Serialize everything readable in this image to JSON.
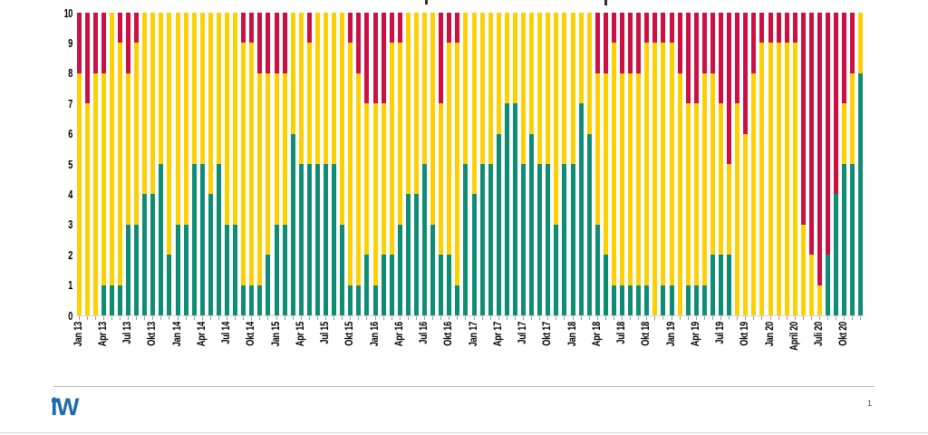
{
  "page": {
    "background": "#ffffff",
    "page_number": "1"
  },
  "branding": {
    "logo_text": "iW",
    "logo_color": "#1e6cac"
  },
  "chart_data": {
    "type": "bar",
    "stacked": true,
    "title": "",
    "xlabel": "",
    "ylabel": "",
    "ylim": [
      0,
      10
    ],
    "grid": false,
    "legend": "none",
    "y_ticks": [
      "10",
      "9",
      "8",
      "7",
      "6",
      "5",
      "4",
      "3",
      "2",
      "1",
      "0"
    ],
    "tick_every": 3,
    "x_tick_labels": [
      "Jan 13",
      "Apr 13",
      "Jul 13",
      "Okt 13",
      "Jan 14",
      "Apr 14",
      "Jul 14",
      "Okt 14",
      "Jan 15",
      "Apr 15",
      "Jul 15",
      "Okt 15",
      "Jan 16",
      "Apr 16",
      "Jul 16",
      "Okt 16",
      "Jan 17",
      "Apr 17",
      "Jul 17",
      "Okt 17",
      "Jan 18",
      "Apr 18",
      "Jul 18",
      "Okt 18",
      "Jan 19",
      "Apr 19",
      "Jul 19",
      "Okt 19",
      "Jan 20",
      "April 20",
      "Juli 20",
      "Okt 20"
    ],
    "categories": [
      "Jan 13",
      "Feb 13",
      "Mär 13",
      "Apr 13",
      "Mai 13",
      "Jun 13",
      "Jul 13",
      "Aug 13",
      "Sep 13",
      "Okt 13",
      "Nov 13",
      "Dez 13",
      "Jan 14",
      "Feb 14",
      "Mär 14",
      "Apr 14",
      "Mai 14",
      "Jun 14",
      "Jul 14",
      "Aug 14",
      "Sep 14",
      "Okt 14",
      "Nov 14",
      "Dez 14",
      "Jan 15",
      "Feb 15",
      "Mär 15",
      "Apr 15",
      "Mai 15",
      "Jun 15",
      "Jul 15",
      "Aug 15",
      "Sep 15",
      "Okt 15",
      "Nov 15",
      "Dez 15",
      "Jan 16",
      "Feb 16",
      "Mär 16",
      "Apr 16",
      "Mai 16",
      "Jun 16",
      "Jul 16",
      "Aug 16",
      "Sep 16",
      "Okt 16",
      "Nov 16",
      "Dez 16",
      "Jan 17",
      "Feb 17",
      "Mär 17",
      "Apr 17",
      "Mai 17",
      "Jun 17",
      "Jul 17",
      "Aug 17",
      "Sep 17",
      "Okt 17",
      "Nov 17",
      "Dez 17",
      "Jan 18",
      "Feb 18",
      "Mär 18",
      "Apr 18",
      "Mai 18",
      "Jun 18",
      "Jul 18",
      "Aug 18",
      "Sep 18",
      "Okt 18",
      "Nov 18",
      "Dez 18",
      "Jan 19",
      "Feb 19",
      "Mär 19",
      "Apr 19",
      "Mai 19",
      "Jun 19",
      "Jul 19",
      "Aug 19",
      "Sep 19",
      "Okt 19",
      "Nov 19",
      "Dez 19",
      "Jan 20",
      "Feb 20",
      "Mär 20",
      "Apr 20",
      "Mai 20",
      "Jun 20",
      "Jul 20",
      "Aug 20",
      "Sep 20",
      "Okt 20",
      "Nov 20",
      "Dez 20"
    ],
    "series_colors": {
      "green": "#0f8c74",
      "yellow": "#fdd006",
      "red": "#cd1043"
    },
    "series": [
      {
        "name": "green",
        "values": [
          0,
          0,
          0,
          1,
          1,
          1,
          3,
          3,
          4,
          4,
          5,
          2,
          3,
          3,
          5,
          5,
          4,
          5,
          3,
          3,
          1,
          1,
          1,
          2,
          3,
          3,
          6,
          5,
          5,
          5,
          5,
          5,
          3,
          1,
          1,
          2,
          1,
          2,
          2,
          3,
          4,
          4,
          5,
          3,
          2,
          2,
          1,
          5,
          4,
          5,
          5,
          6,
          7,
          7,
          5,
          6,
          5,
          5,
          3,
          5,
          5,
          7,
          6,
          3,
          2,
          1,
          1,
          1,
          1,
          1,
          0,
          1,
          1,
          0,
          1,
          1,
          1,
          2,
          2,
          2,
          0,
          0,
          0,
          0,
          0,
          0,
          0,
          0,
          0,
          0,
          0,
          2,
          4,
          5,
          5,
          8
        ]
      },
      {
        "name": "yellow",
        "values": [
          8,
          7,
          8,
          7,
          9,
          8,
          5,
          6,
          6,
          6,
          5,
          8,
          7,
          7,
          5,
          5,
          6,
          5,
          7,
          7,
          8,
          8,
          7,
          6,
          5,
          5,
          4,
          5,
          4,
          5,
          5,
          5,
          7,
          8,
          7,
          5,
          6,
          5,
          7,
          6,
          6,
          6,
          5,
          7,
          5,
          7,
          8,
          5,
          6,
          5,
          5,
          4,
          3,
          3,
          5,
          4,
          5,
          5,
          7,
          5,
          5,
          3,
          4,
          5,
          6,
          8,
          7,
          7,
          7,
          8,
          9,
          8,
          8,
          8,
          6,
          6,
          7,
          6,
          5,
          3,
          7,
          6,
          8,
          9,
          9,
          9,
          9,
          9,
          3,
          2,
          1,
          0,
          0,
          2,
          3,
          2
        ]
      },
      {
        "name": "red",
        "values": [
          2,
          3,
          2,
          2,
          0,
          1,
          2,
          1,
          0,
          0,
          0,
          0,
          0,
          0,
          0,
          0,
          0,
          0,
          0,
          0,
          1,
          1,
          2,
          2,
          2,
          2,
          0,
          0,
          1,
          0,
          0,
          0,
          0,
          1,
          2,
          3,
          3,
          3,
          1,
          1,
          0,
          0,
          0,
          0,
          3,
          1,
          1,
          0,
          0,
          0,
          0,
          0,
          0,
          0,
          0,
          0,
          0,
          0,
          0,
          0,
          0,
          0,
          0,
          2,
          2,
          1,
          2,
          2,
          2,
          1,
          1,
          1,
          1,
          2,
          3,
          3,
          2,
          2,
          3,
          5,
          3,
          4,
          2,
          1,
          1,
          1,
          1,
          1,
          7,
          8,
          9,
          8,
          6,
          3,
          2,
          0
        ]
      }
    ]
  }
}
